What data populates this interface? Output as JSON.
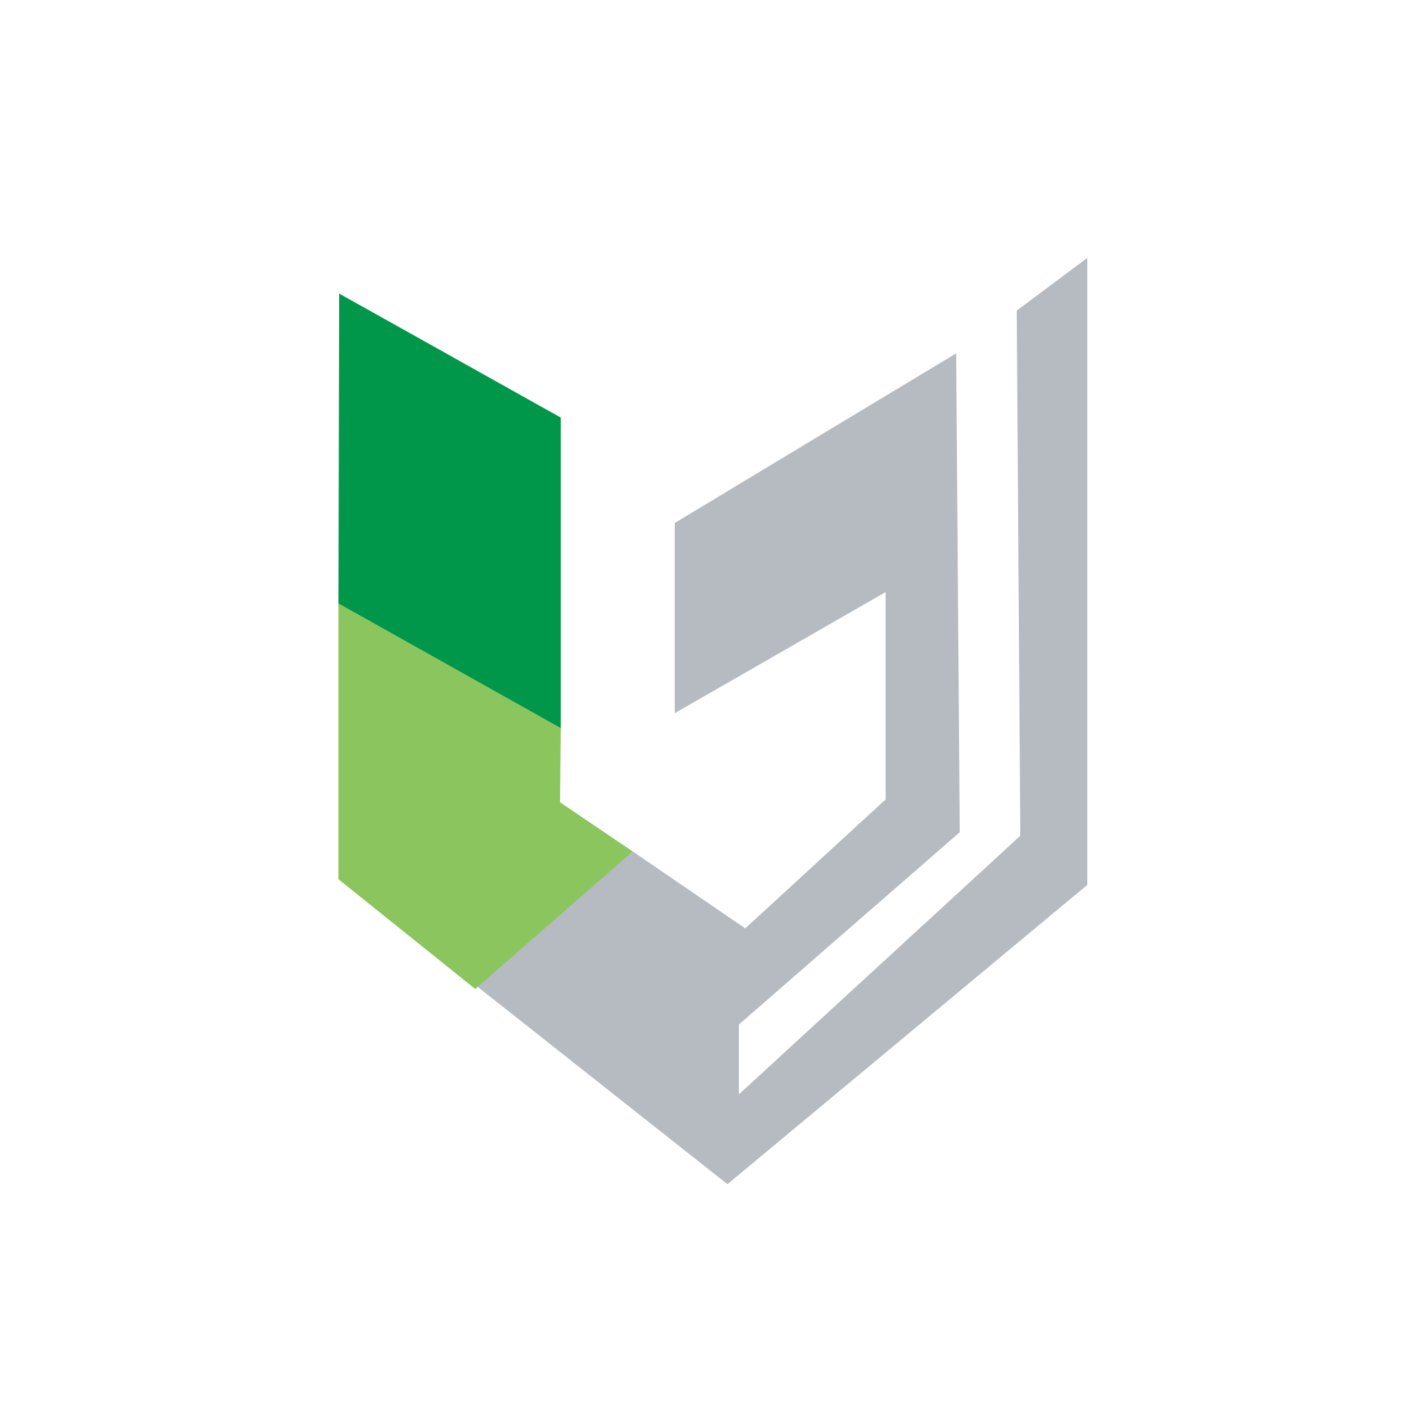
{
  "logo": {
    "name": "shield-logo",
    "colors": {
      "background": "#ffffff",
      "dark_green": "#00974a",
      "light_green": "#8bc55d",
      "gray": "#b5bbc0"
    }
  }
}
